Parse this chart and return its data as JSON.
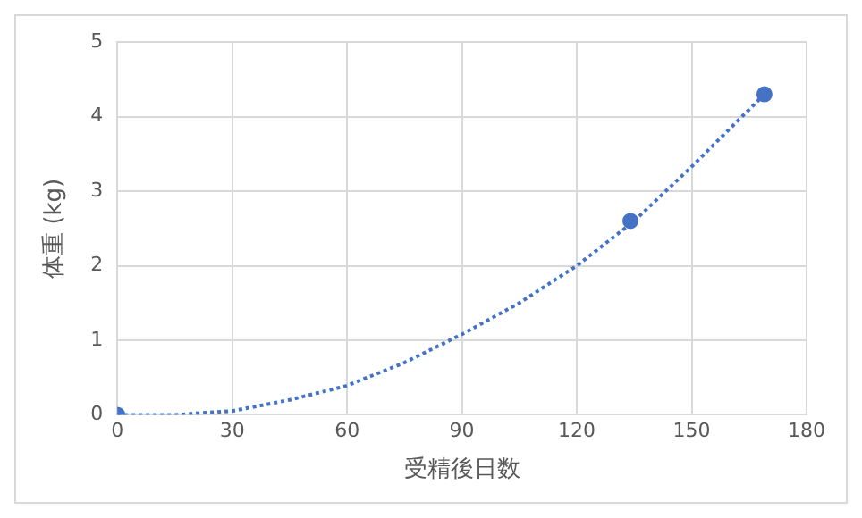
{
  "chart_data": {
    "type": "scatter",
    "xlabel": "受精後日数",
    "ylabel": "体重 (kg)",
    "series": [
      {
        "type": "scatter",
        "color": "#4472c4",
        "x": [
          0,
          134,
          169
        ],
        "values": [
          0,
          2.6,
          4.3
        ],
        "marker": "circle"
      },
      {
        "type": "line",
        "color": "#4472c4",
        "x": [
          0,
          15,
          30,
          45,
          60,
          75,
          90,
          105,
          120,
          135,
          150,
          169
        ],
        "values": [
          0,
          0,
          0.05,
          0.2,
          0.39,
          0.7,
          1.08,
          1.5,
          2.0,
          2.6,
          3.33,
          4.3
        ],
        "line_style": "dotted",
        "marker": "none"
      }
    ],
    "xlim": [
      0,
      180
    ],
    "xticks": [
      0,
      30,
      60,
      90,
      120,
      150,
      180
    ],
    "ylim": [
      0,
      5
    ],
    "yticks": [
      0,
      1,
      2,
      3,
      4,
      5
    ],
    "grid": true
  }
}
